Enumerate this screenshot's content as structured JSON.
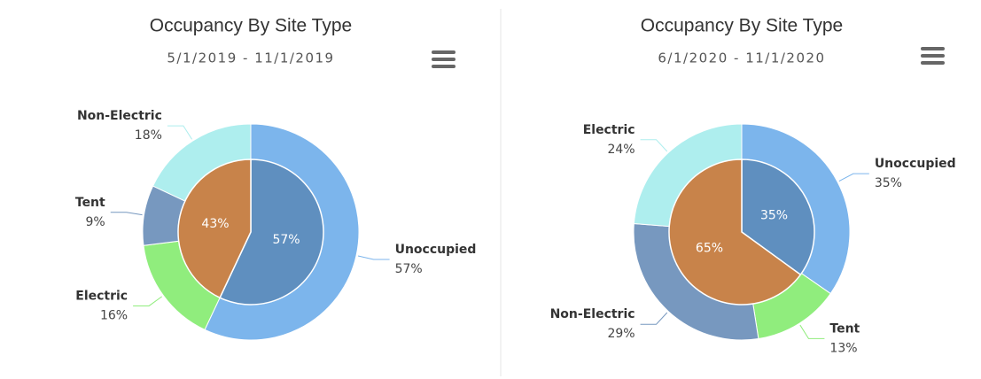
{
  "chart_data": [
    {
      "type": "donut",
      "title": "Occupancy By Site Type",
      "subtitle": "5/1/2019 - 11/1/2019",
      "categories": [
        "Unoccupied",
        "Electric",
        "Tent",
        "Non-Electric"
      ],
      "values": [
        57,
        16,
        9,
        18
      ],
      "value_labels": [
        "57%",
        "16%",
        "9%",
        "18%"
      ],
      "colors": [
        "#7cb5ec",
        "#90ed7d",
        "#7798bf",
        "#aeeeee"
      ],
      "inner": {
        "values": [
          57,
          43
        ],
        "value_labels": [
          "57%",
          "43%"
        ],
        "colors": [
          "#5f8fbf",
          "#c8834a"
        ]
      }
    },
    {
      "type": "donut",
      "title": "Occupancy By Site Type",
      "subtitle": "6/1/2020 - 11/1/2020",
      "categories": [
        "Unoccupied",
        "Tent",
        "Non-Electric",
        "Electric"
      ],
      "values": [
        35,
        13,
        29,
        24
      ],
      "value_labels": [
        "35%",
        "13%",
        "29%",
        "24%"
      ],
      "colors": [
        "#7cb5ec",
        "#90ed7d",
        "#7798bf",
        "#aeeeee"
      ],
      "inner": {
        "values": [
          35,
          65
        ],
        "value_labels": [
          "35%",
          "65%"
        ],
        "colors": [
          "#5f8fbf",
          "#c8834a"
        ]
      }
    }
  ]
}
